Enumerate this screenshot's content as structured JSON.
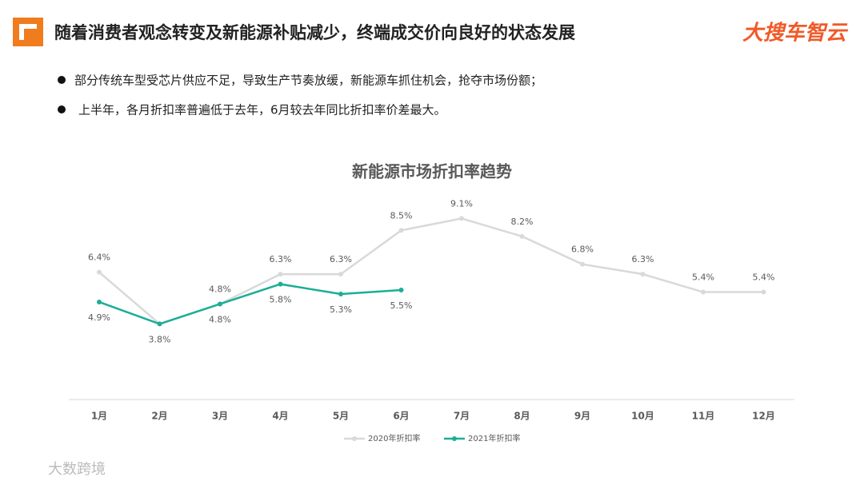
{
  "header": {
    "title": "随着消费者观念转变及新能源补贴减少，终端成交价向良好的状态发展",
    "logo": "大搜车智云"
  },
  "bullets": [
    "部分传统车型受芯片供应不足，导致生产节奏放缓，新能源车抓住机会，抢夺市场份额；",
    "上半年，各月折扣率普遍低于去年，6月较去年同比折扣率价差最大。"
  ],
  "watermark": "大数跨境",
  "chart_data": {
    "type": "line",
    "title": "新能源市场折扣率趋势",
    "categories": [
      "1月",
      "2月",
      "3月",
      "4月",
      "5月",
      "6月",
      "7月",
      "8月",
      "9月",
      "10月",
      "11月",
      "12月"
    ],
    "series": [
      {
        "name": "2020年折扣率",
        "color": "#d9d9d9",
        "values": [
          6.4,
          3.8,
          4.8,
          6.3,
          6.3,
          8.5,
          9.1,
          8.2,
          6.8,
          6.3,
          5.4,
          5.4
        ],
        "value_labels": [
          "6.4%",
          null,
          "4.8%",
          "6.3%",
          "6.3%",
          "8.5%",
          "9.1%",
          "8.2%",
          "6.8%",
          "6.3%",
          "5.4%",
          "5.4%"
        ]
      },
      {
        "name": "2021年折扣率",
        "color": "#1aae96",
        "values": [
          4.9,
          3.8,
          4.8,
          5.8,
          5.3,
          5.5,
          null,
          null,
          null,
          null,
          null,
          null
        ],
        "value_labels": [
          "4.9%",
          "3.8%",
          "4.8%",
          "5.8%",
          "5.3%",
          "5.5%",
          null,
          null,
          null,
          null,
          null,
          null
        ]
      }
    ],
    "legend": "bottom"
  }
}
